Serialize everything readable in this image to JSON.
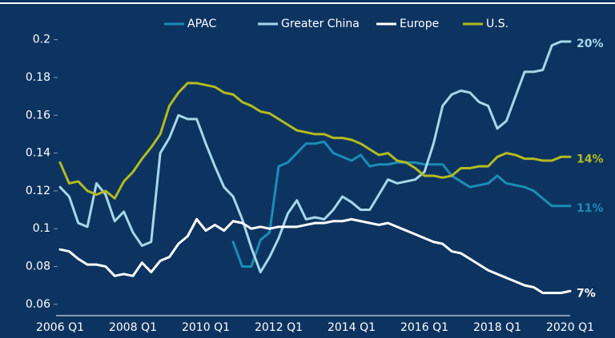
{
  "chart_data": {
    "type": "line",
    "categories": [
      "2006 Q1",
      null,
      null,
      null,
      null,
      null,
      null,
      null,
      "2008 Q1",
      null,
      null,
      null,
      null,
      null,
      null,
      null,
      "2010 Q1",
      null,
      null,
      null,
      null,
      null,
      null,
      null,
      "2012 Q1",
      null,
      null,
      null,
      null,
      null,
      null,
      null,
      "2014 Q1",
      null,
      null,
      null,
      null,
      null,
      null,
      null,
      "2016 Q1",
      null,
      null,
      null,
      null,
      null,
      null,
      null,
      "2018 Q1",
      null,
      null,
      null,
      null,
      null,
      null,
      null,
      "2020 Q1"
    ],
    "ylim": [
      0.054,
      0.21
    ],
    "yticks": [
      0.06,
      0.08,
      0.1,
      0.12,
      0.14,
      0.16,
      0.18,
      0.2
    ],
    "grid": false,
    "legend": "top",
    "series": [
      {
        "name": "APAC",
        "color": "#1b8db6",
        "end_label": "11%",
        "values": [
          null,
          null,
          null,
          null,
          null,
          null,
          null,
          null,
          null,
          null,
          null,
          null,
          null,
          null,
          null,
          null,
          null,
          null,
          null,
          0.093,
          0.08,
          0.08,
          0.094,
          0.098,
          0.133,
          0.135,
          0.14,
          0.145,
          0.145,
          0.146,
          0.14,
          0.138,
          0.136,
          0.139,
          0.133,
          0.134,
          0.134,
          0.135,
          0.135,
          0.135,
          0.134,
          0.134,
          0.134,
          0.128,
          0.125,
          0.122,
          0.123,
          0.124,
          0.128,
          0.124,
          0.123,
          0.122,
          0.12,
          0.116,
          0.112,
          0.112,
          0.112
        ]
      },
      {
        "name": "Greater China",
        "color": "#a7d7ea",
        "end_label": "20%",
        "values": [
          0.122,
          0.117,
          0.103,
          0.101,
          0.124,
          0.118,
          0.104,
          0.109,
          0.098,
          0.091,
          0.093,
          0.14,
          0.148,
          0.16,
          0.158,
          0.158,
          0.145,
          0.133,
          0.122,
          0.117,
          0.105,
          0.09,
          0.077,
          0.085,
          0.095,
          0.108,
          0.115,
          0.105,
          0.106,
          0.105,
          0.11,
          0.117,
          0.114,
          0.11,
          0.11,
          0.118,
          0.126,
          0.124,
          0.125,
          0.126,
          0.13,
          0.145,
          0.165,
          0.171,
          0.173,
          0.172,
          0.167,
          0.165,
          0.153,
          0.157,
          0.17,
          0.183,
          0.183,
          0.184,
          0.197,
          0.199,
          0.199
        ]
      },
      {
        "name": "Europe",
        "color": "#ffffff",
        "end_label": "7%",
        "values": [
          0.089,
          0.088,
          0.084,
          0.081,
          0.081,
          0.08,
          0.075,
          0.076,
          0.075,
          0.082,
          0.077,
          0.083,
          0.085,
          0.092,
          0.096,
          0.105,
          0.099,
          0.102,
          0.099,
          0.104,
          0.103,
          0.1,
          0.101,
          0.1,
          0.101,
          0.101,
          0.101,
          0.102,
          0.103,
          0.103,
          0.104,
          0.104,
          0.105,
          0.104,
          0.103,
          0.102,
          0.103,
          0.101,
          0.099,
          0.097,
          0.095,
          0.093,
          0.092,
          0.088,
          0.087,
          0.084,
          0.081,
          0.078,
          0.076,
          0.074,
          0.072,
          0.07,
          0.069,
          0.066,
          0.066,
          0.066,
          0.067
        ]
      },
      {
        "name": "U.S.",
        "color": "#b3bb1f",
        "end_label": "14%",
        "values": [
          0.135,
          0.124,
          0.125,
          0.12,
          0.118,
          0.12,
          0.116,
          0.125,
          0.13,
          0.137,
          0.143,
          0.15,
          0.165,
          0.172,
          0.177,
          0.177,
          0.176,
          0.175,
          0.172,
          0.171,
          0.167,
          0.165,
          0.162,
          0.161,
          0.158,
          0.155,
          0.152,
          0.151,
          0.15,
          0.15,
          0.148,
          0.148,
          0.147,
          0.145,
          0.142,
          0.139,
          0.14,
          0.136,
          0.135,
          0.132,
          0.128,
          0.128,
          0.127,
          0.128,
          0.132,
          0.132,
          0.133,
          0.133,
          0.138,
          0.14,
          0.139,
          0.137,
          0.137,
          0.136,
          0.136,
          0.138,
          0.138
        ]
      }
    ]
  }
}
